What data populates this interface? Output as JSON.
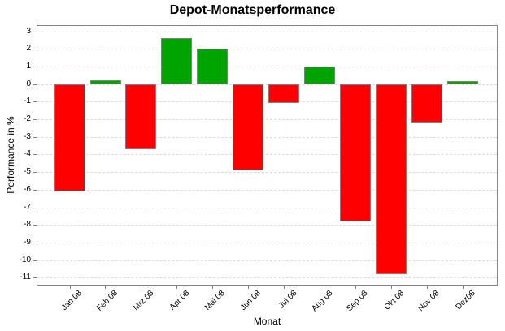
{
  "chart_data": {
    "type": "bar",
    "title": "Depot-Monatsperformance",
    "xlabel": "Monat",
    "ylabel": "Performance in %",
    "categories": [
      "Jan 08",
      "Feb 08",
      "Mrz 08",
      "Apr 08",
      "Mai 08",
      "Jun 08",
      "Jul 08",
      "Aug 08",
      "Sep 08",
      "Okt 08",
      "Nov 08",
      "Dez08"
    ],
    "values": [
      -6.1,
      0.2,
      -3.7,
      2.6,
      2.0,
      -4.9,
      -1.1,
      1.0,
      -7.8,
      -10.8,
      -2.2,
      0.15
    ],
    "yticks": [
      3,
      2,
      1,
      0,
      -1,
      -2,
      -3,
      -4,
      -5,
      -6,
      -7,
      -8,
      -9,
      -10,
      -11
    ],
    "ylim": [
      -11.4,
      3.3
    ],
    "grid": true,
    "grid_style": "dashed-horizontal",
    "legend": "none",
    "colors": {
      "positive": "#00a400",
      "negative": "#ff0000",
      "bar_border": "#808080",
      "gridline": "#dcdcdc",
      "plot_border": "#848484",
      "background": "#ffffff",
      "text": "#000000"
    }
  }
}
